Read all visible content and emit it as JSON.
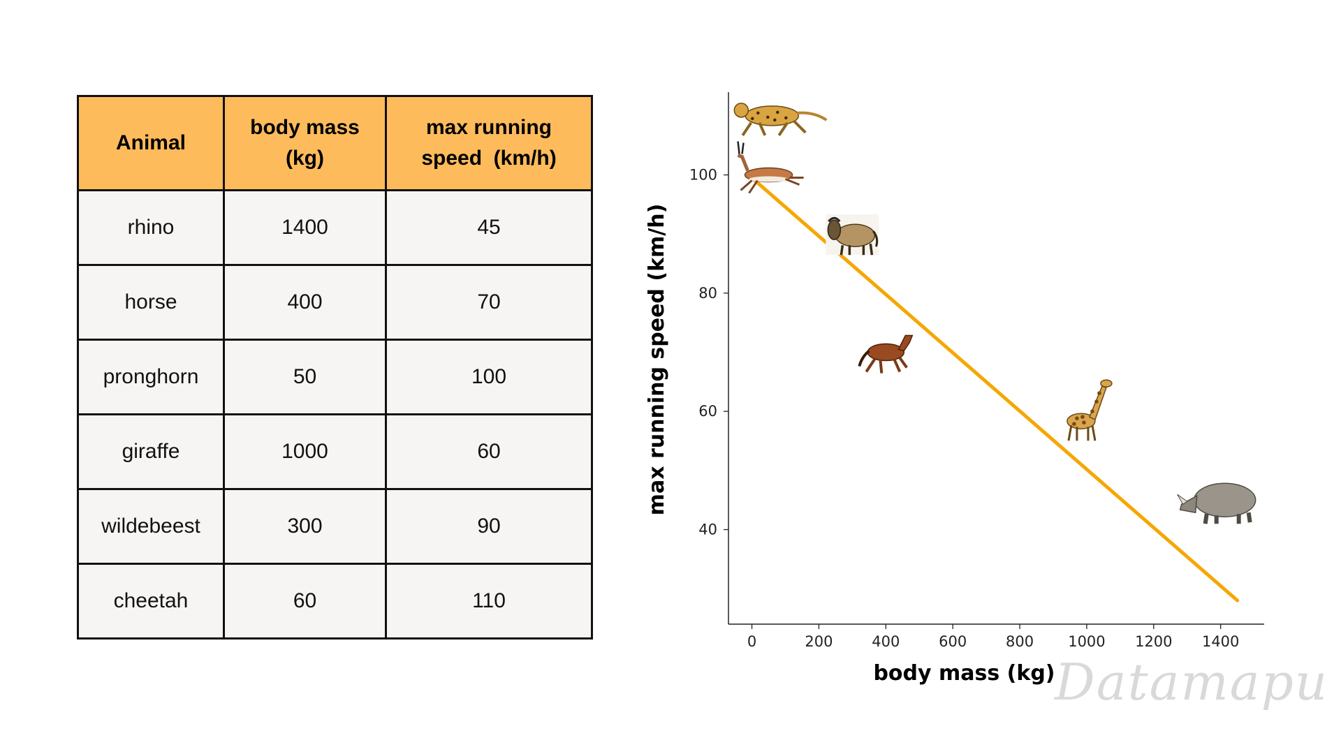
{
  "table": {
    "headers": [
      "Animal",
      [
        "body mass",
        "(kg)"
      ],
      [
        "max running",
        "speed  (km/h)"
      ]
    ],
    "rows": [
      [
        "rhino",
        "1400",
        "45"
      ],
      [
        "horse",
        "400",
        "70"
      ],
      [
        "pronghorn",
        "50",
        "100"
      ],
      [
        "giraffe",
        "1000",
        "60"
      ],
      [
        "wildebeest",
        "300",
        "90"
      ],
      [
        "cheetah",
        "60",
        "110"
      ]
    ],
    "header_color": "#fdbb5c",
    "cell_color": "#f7f5f4"
  },
  "chart_data": {
    "type": "scatter",
    "xlabel": "body mass (kg)",
    "ylabel": "max running speed (km/h)",
    "xlim": [
      -70,
      1530
    ],
    "ylim": [
      24,
      114
    ],
    "xticks": [
      0,
      200,
      400,
      600,
      800,
      1000,
      1200,
      1400
    ],
    "yticks": [
      40,
      60,
      80,
      100
    ],
    "points": [
      {
        "label": "rhino",
        "x": 1400,
        "y": 45,
        "icon": "rhino-icon"
      },
      {
        "label": "horse",
        "x": 400,
        "y": 70,
        "icon": "horse-icon"
      },
      {
        "label": "pronghorn",
        "x": 50,
        "y": 100,
        "icon": "pronghorn-icon"
      },
      {
        "label": "giraffe",
        "x": 1000,
        "y": 60,
        "icon": "giraffe-icon"
      },
      {
        "label": "wildebeest",
        "x": 300,
        "y": 90,
        "icon": "wildebeest-icon"
      },
      {
        "label": "cheetah",
        "x": 60,
        "y": 110,
        "icon": "cheetah-icon"
      }
    ],
    "trend_line": {
      "x": [
        0,
        1450
      ],
      "y": [
        99.5,
        28
      ],
      "color": "#f5a700"
    },
    "grid": false
  },
  "watermark": "Datamapu"
}
